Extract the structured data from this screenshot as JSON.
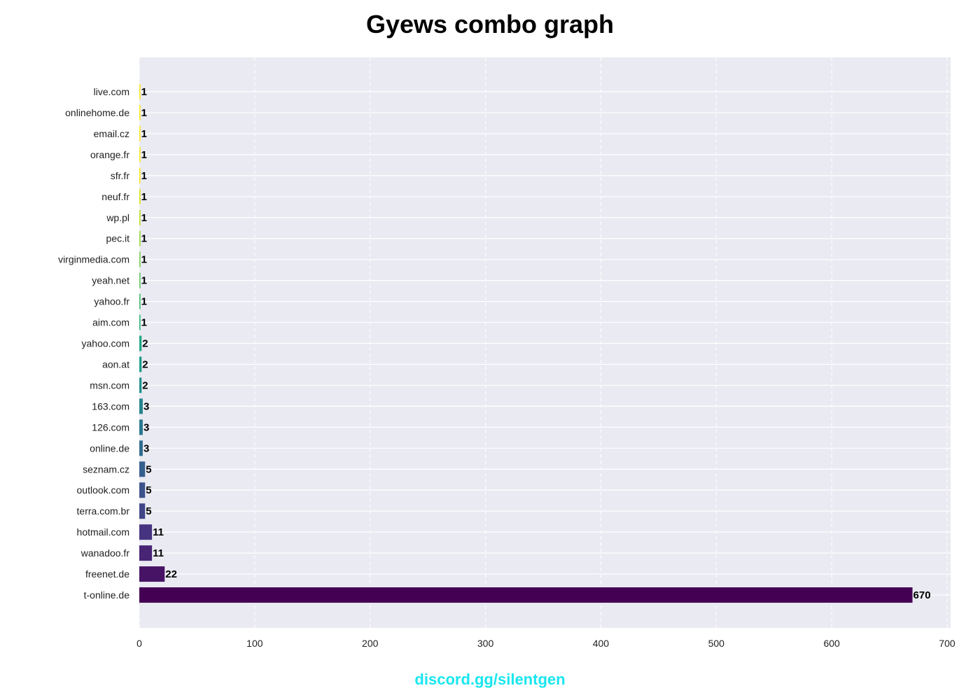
{
  "chart_data": {
    "type": "bar",
    "orientation": "horizontal",
    "title": "Gyews combo graph",
    "xlabel": "",
    "ylabel": "",
    "xlim": [
      0,
      700
    ],
    "xticks": [
      0,
      100,
      200,
      300,
      400,
      500,
      600,
      700
    ],
    "grid": true,
    "colormap": "viridis",
    "categories": [
      "t-online.de",
      "freenet.de",
      "wanadoo.fr",
      "hotmail.com",
      "terra.com.br",
      "outlook.com",
      "seznam.cz",
      "online.de",
      "126.com",
      "163.com",
      "msn.com",
      "aon.at",
      "yahoo.com",
      "aim.com",
      "yahoo.fr",
      "yeah.net",
      "virginmedia.com",
      "pec.it",
      "wp.pl",
      "neuf.fr",
      "sfr.fr",
      "orange.fr",
      "email.cz",
      "onlinehome.de",
      "live.com"
    ],
    "values": [
      670,
      22,
      11,
      11,
      5,
      5,
      5,
      3,
      3,
      3,
      2,
      2,
      2,
      1,
      1,
      1,
      1,
      1,
      1,
      1,
      1,
      1,
      1,
      1,
      1
    ],
    "value_labels": [
      "670",
      "22",
      "11",
      "11",
      "5",
      "5",
      "5",
      "3",
      "3",
      "3",
      "2",
      "2",
      "2",
      "1",
      "1",
      "1",
      "1",
      "1",
      "1",
      "1",
      "1",
      "1",
      "1",
      "1",
      "1"
    ],
    "colors": [
      "#440154",
      "#471365",
      "#482475",
      "#463480",
      "#414487",
      "#3b528b",
      "#355f8d",
      "#2f6c8e",
      "#2a788e",
      "#25848e",
      "#21918c",
      "#1e9c89",
      "#22a884",
      "#2fb47c",
      "#44bf70",
      "#5ec962",
      "#7ad151",
      "#9bd93c",
      "#bddf26",
      "#dfe318",
      "#fde725",
      "#fde725",
      "#fde725",
      "#fde725",
      "#fde725"
    ]
  },
  "footer": {
    "text": "discord.gg/silentgen"
  }
}
